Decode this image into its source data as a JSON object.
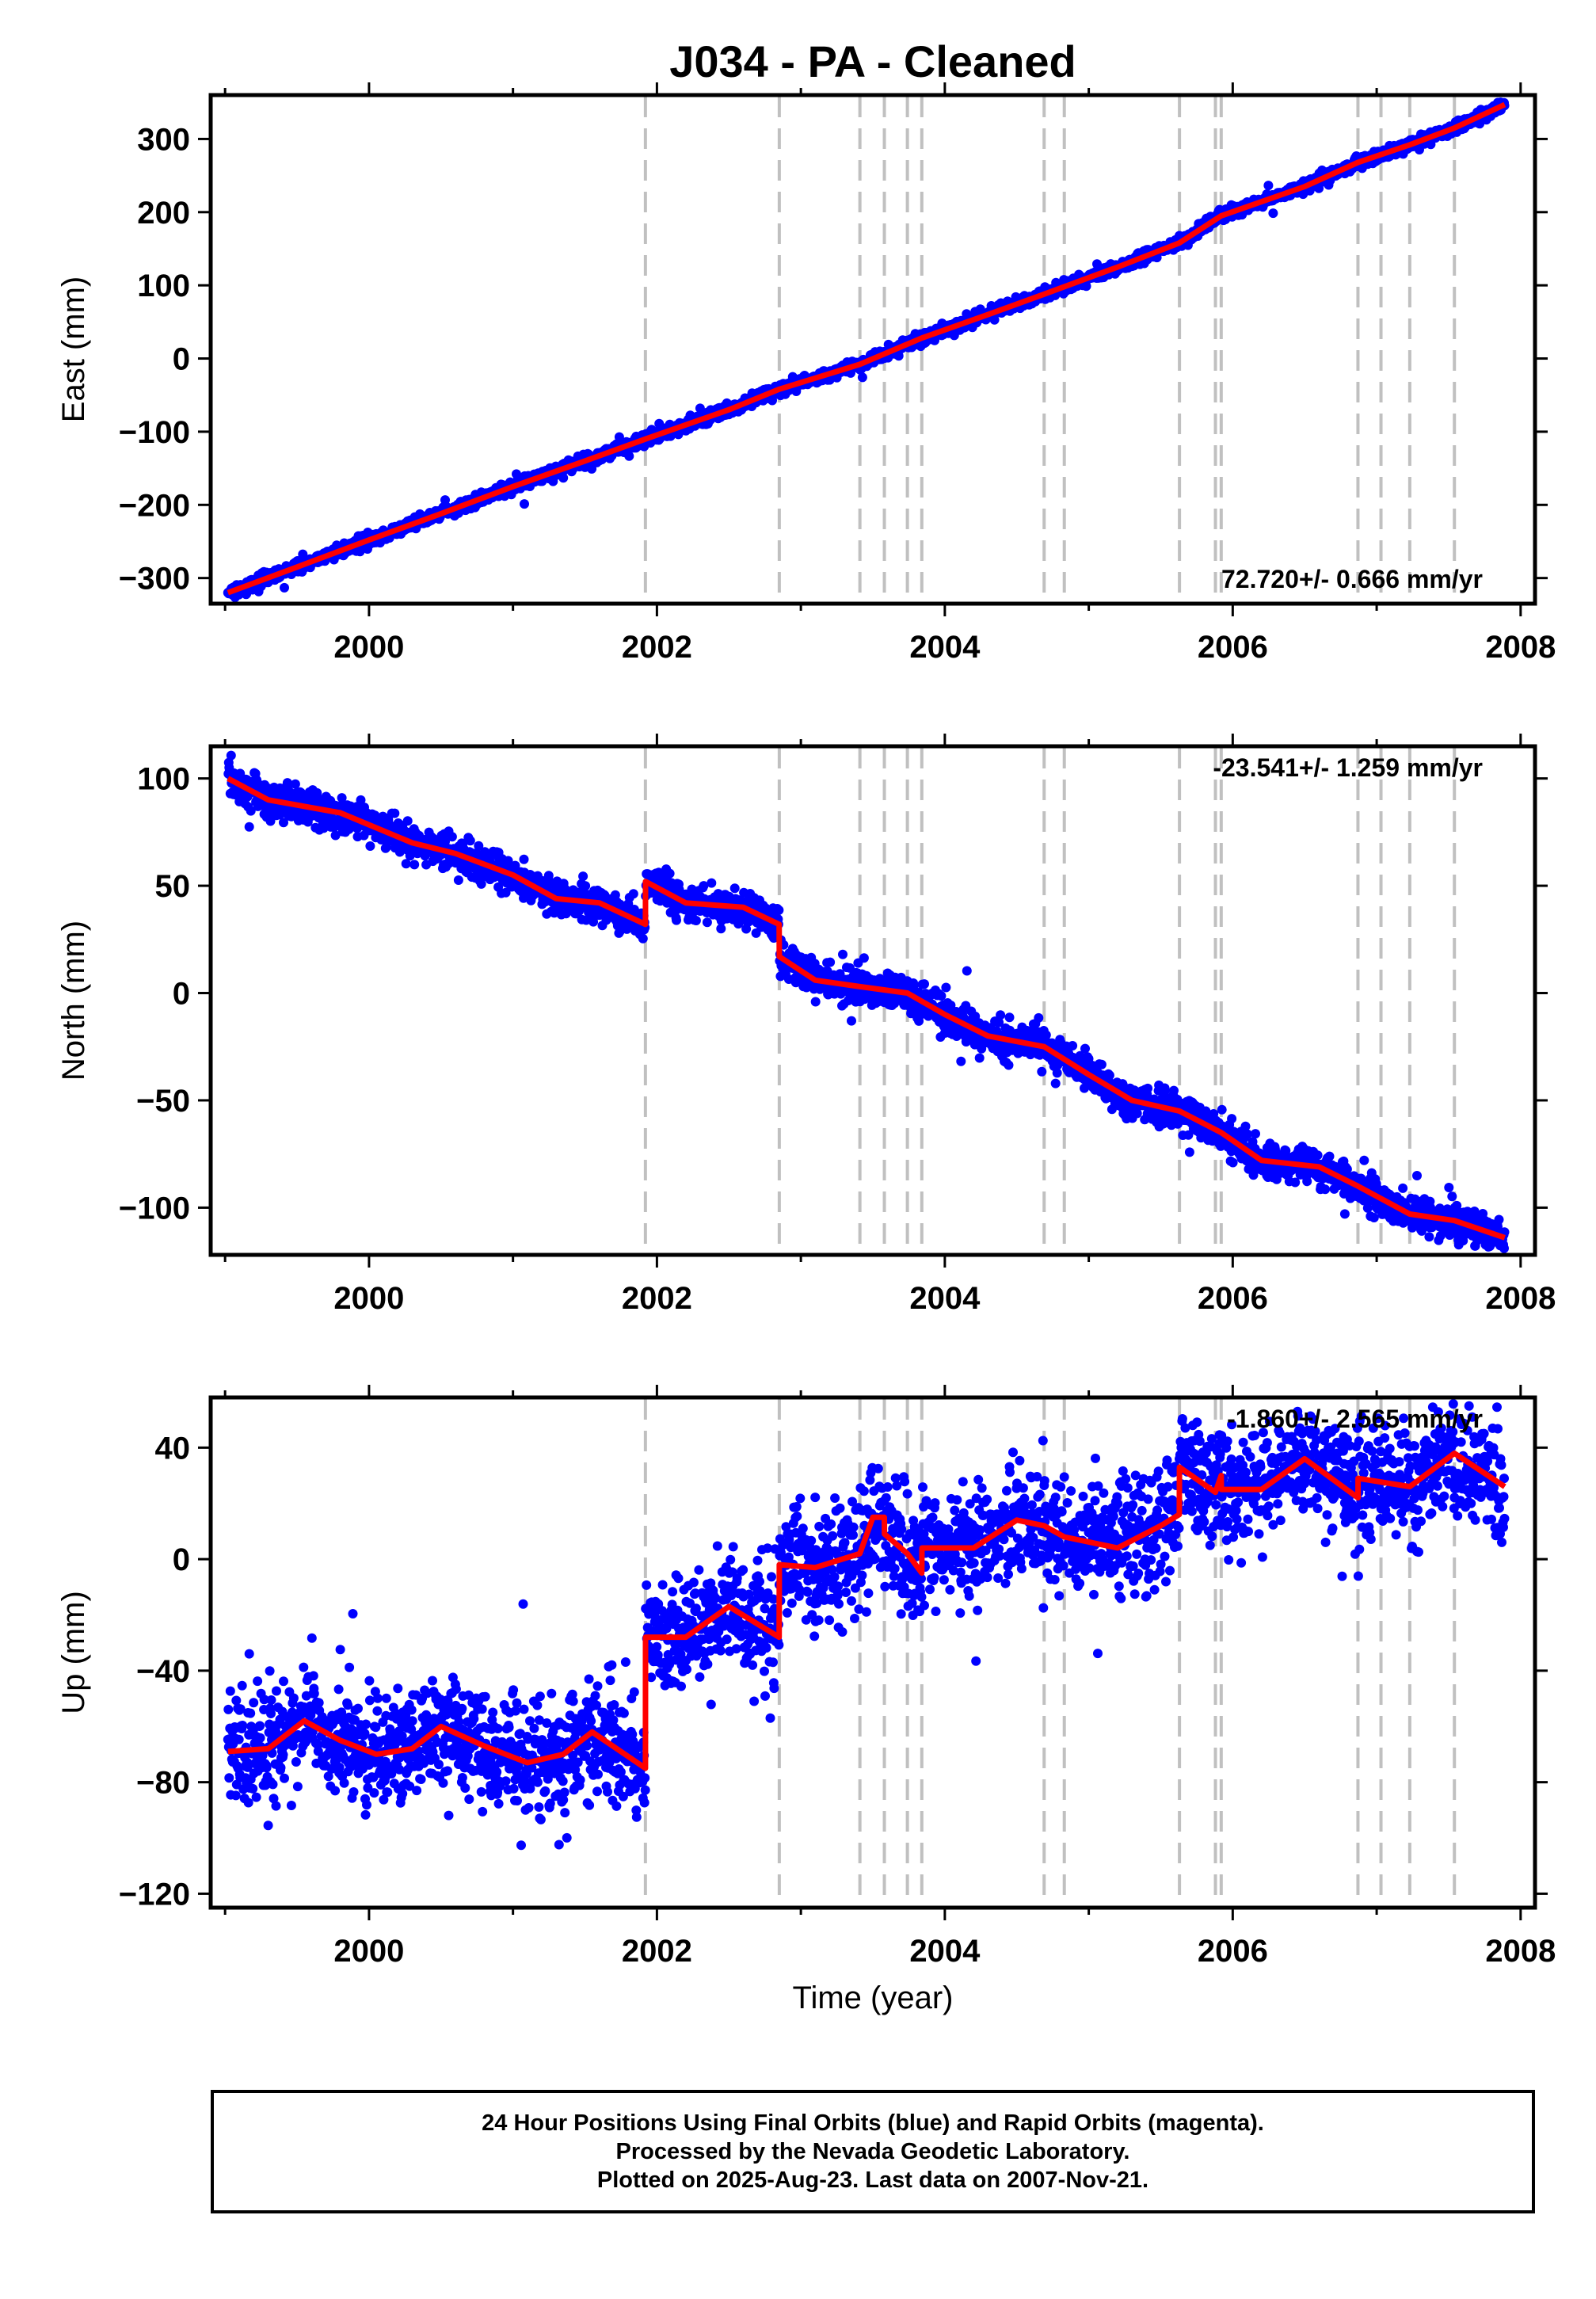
{
  "chart_data": {
    "type": "scatter",
    "title": "J034  - PA - Cleaned",
    "xlabel": "Time (year)",
    "x_ticks": [
      "2000",
      "2002",
      "2004",
      "2006",
      "2008"
    ],
    "xlim": [
      1998.9,
      2008.1
    ],
    "last_data_date": "2007-Nov-21",
    "series_colors": {
      "daily_positions": "#0000ff",
      "model_fit": "#ff0000",
      "steps": "#c0c0c0"
    },
    "step_epochs": [
      2001.92,
      2002.85,
      2003.41,
      2003.58,
      2003.74,
      2003.84,
      2004.69,
      2004.83,
      2005.63,
      2005.88,
      2005.92,
      2006.87,
      2007.03,
      2007.23,
      2007.54
    ],
    "panels": [
      {
        "ylabel": "East (mm)",
        "ylim": [
          -335,
          360
        ],
        "y_ticks": [
          "300",
          "200",
          "100",
          "0",
          "−100",
          "−200",
          "−300"
        ],
        "rate_text": "72.720+/- 0.666 mm/yr",
        "rate_position": "bottom-right",
        "model": [
          [
            1999.02,
            -320
          ],
          [
            1999.5,
            -285
          ],
          [
            2000.0,
            -248
          ],
          [
            2000.5,
            -212
          ],
          [
            2001.0,
            -175
          ],
          [
            2001.5,
            -140
          ],
          [
            2001.92,
            -110
          ],
          [
            2002.5,
            -70
          ],
          [
            2002.85,
            -42
          ],
          [
            2003.41,
            -8
          ],
          [
            2003.84,
            28
          ],
          [
            2004.3,
            60
          ],
          [
            2004.69,
            88
          ],
          [
            2005.2,
            125
          ],
          [
            2005.63,
            158
          ],
          [
            2005.92,
            195
          ],
          [
            2006.5,
            235
          ],
          [
            2006.87,
            268
          ],
          [
            2007.23,
            292
          ],
          [
            2007.54,
            315
          ],
          [
            2007.89,
            347
          ]
        ],
        "noise_mm": 4
      },
      {
        "ylabel": "North (mm)",
        "ylim": [
          -122,
          115
        ],
        "y_ticks": [
          "100",
          "50",
          "0",
          "−50",
          "−100"
        ],
        "rate_text": "-23.541+/- 1.259 mm/yr",
        "rate_position": "top-right",
        "model": [
          [
            1999.02,
            100
          ],
          [
            1999.3,
            90
          ],
          [
            1999.8,
            84
          ],
          [
            2000.3,
            70
          ],
          [
            2000.6,
            65
          ],
          [
            2001.0,
            55
          ],
          [
            2001.3,
            44
          ],
          [
            2001.6,
            42
          ],
          [
            2001.92,
            32
          ],
          [
            2001.921,
            52
          ],
          [
            2002.2,
            42
          ],
          [
            2002.6,
            40
          ],
          [
            2002.849,
            32
          ],
          [
            2002.85,
            17
          ],
          [
            2003.1,
            6
          ],
          [
            2003.41,
            3
          ],
          [
            2003.74,
            0
          ],
          [
            2004.0,
            -10
          ],
          [
            2004.3,
            -20
          ],
          [
            2004.69,
            -25
          ],
          [
            2005.0,
            -38
          ],
          [
            2005.3,
            -50
          ],
          [
            2005.63,
            -55
          ],
          [
            2005.92,
            -65
          ],
          [
            2006.2,
            -78
          ],
          [
            2006.6,
            -81
          ],
          [
            2006.87,
            -90
          ],
          [
            2007.23,
            -103
          ],
          [
            2007.54,
            -106
          ],
          [
            2007.89,
            -114
          ]
        ],
        "noise_mm": 4
      },
      {
        "ylabel": "Up (mm)",
        "ylim": [
          -125,
          58
        ],
        "y_ticks": [
          "40",
          "0",
          "−40",
          "−80",
          "−120"
        ],
        "rate_text": "-1.860+/- 2.565 mm/yr",
        "rate_position": "top-right",
        "model": [
          [
            1999.02,
            -69
          ],
          [
            1999.3,
            -68
          ],
          [
            1999.55,
            -58
          ],
          [
            1999.8,
            -65
          ],
          [
            2000.05,
            -70
          ],
          [
            2000.3,
            -68
          ],
          [
            2000.5,
            -60
          ],
          [
            2000.8,
            -67
          ],
          [
            2001.1,
            -73
          ],
          [
            2001.35,
            -70
          ],
          [
            2001.55,
            -62
          ],
          [
            2001.92,
            -75
          ],
          [
            2001.921,
            -28
          ],
          [
            2002.2,
            -28
          ],
          [
            2002.5,
            -17
          ],
          [
            2002.849,
            -28
          ],
          [
            2002.85,
            -2
          ],
          [
            2003.1,
            -3
          ],
          [
            2003.41,
            2
          ],
          [
            2003.5,
            15
          ],
          [
            2003.58,
            15
          ],
          [
            2003.581,
            9
          ],
          [
            2003.74,
            2
          ],
          [
            2003.84,
            -5
          ],
          [
            2003.841,
            4
          ],
          [
            2004.2,
            4
          ],
          [
            2004.5,
            14
          ],
          [
            2004.69,
            12
          ],
          [
            2004.83,
            8
          ],
          [
            2005.2,
            4
          ],
          [
            2005.5,
            12
          ],
          [
            2005.629,
            16
          ],
          [
            2005.63,
            33
          ],
          [
            2005.88,
            24
          ],
          [
            2005.92,
            30
          ],
          [
            2005.921,
            25
          ],
          [
            2006.2,
            25
          ],
          [
            2006.5,
            36
          ],
          [
            2006.87,
            22
          ],
          [
            2006.871,
            29
          ],
          [
            2007.23,
            26
          ],
          [
            2007.54,
            38
          ],
          [
            2007.89,
            26
          ]
        ],
        "noise_mm": 10
      }
    ]
  },
  "footer": {
    "line1": "24 Hour Positions Using Final Orbits (blue) and Rapid Orbits (magenta).",
    "line2": "Processed by the Nevada Geodetic Laboratory.",
    "line3": "Plotted on 2025-Aug-23. Last data on 2007-Nov-21."
  }
}
